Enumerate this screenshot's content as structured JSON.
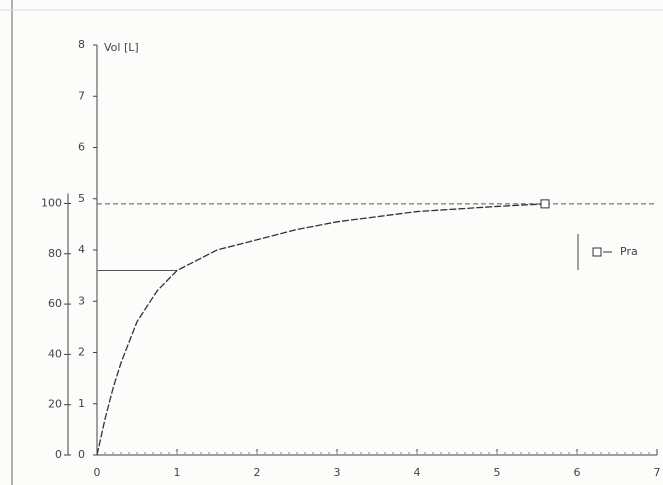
{
  "chart_data": {
    "type": "line",
    "ylabel": "Vol [L]",
    "x": [
      0,
      0.1,
      0.2,
      0.3,
      0.5,
      0.75,
      1,
      1.5,
      2,
      2.5,
      3,
      3.5,
      4,
      4.5,
      5,
      5.6
    ],
    "series": [
      {
        "name": "Pra",
        "color": "#333333",
        "values": [
          0,
          0.7,
          1.3,
          1.8,
          2.6,
          3.2,
          3.6,
          4.0,
          4.2,
          4.4,
          4.55,
          4.65,
          4.75,
          4.8,
          4.85,
          4.9
        ]
      }
    ],
    "xlim": [
      0,
      7
    ],
    "xticks": [
      0,
      1,
      2,
      3,
      4,
      5,
      6,
      7
    ],
    "ylim": [
      0,
      8
    ],
    "yticks": [
      0,
      1,
      2,
      3,
      4,
      5,
      6,
      7,
      8
    ],
    "y2lim": [
      0,
      163
    ],
    "y2ticks": [
      0,
      20,
      40,
      60,
      80,
      100
    ],
    "reference_lines": [
      {
        "y": 4.9,
        "x": [
          0,
          7
        ],
        "style": "dashed"
      },
      {
        "y": 3.6,
        "x": [
          0,
          1
        ],
        "style": "solid"
      }
    ],
    "legend": "right"
  }
}
